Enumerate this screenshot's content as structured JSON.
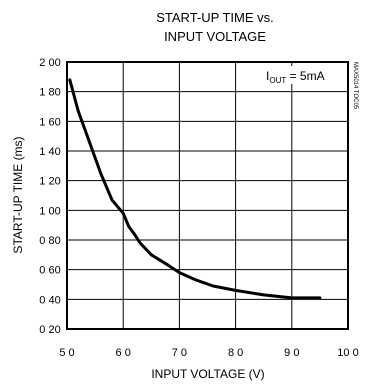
{
  "chart_data": {
    "type": "line",
    "title_line1": "START-UP TIME vs.",
    "title_line2": "INPUT VOLTAGE",
    "xlabel": "INPUT VOLTAGE (V)",
    "ylabel": "START-UP TIME (ms)",
    "xlim": [
      50,
      100
    ],
    "ylim": [
      20,
      200
    ],
    "x_ticks": [
      50,
      60,
      70,
      80,
      90,
      100
    ],
    "x_tick_labels": [
      "5 0",
      "6 0",
      "7 0",
      "8 0",
      "9 0",
      "10 0"
    ],
    "y_ticks": [
      20,
      40,
      60,
      80,
      100,
      120,
      140,
      160,
      180,
      200
    ],
    "y_tick_labels": [
      "0 20",
      "0 40",
      "0 60",
      "0 80",
      "1 00",
      "1 20",
      "1 40",
      "1 60",
      "1 80",
      "2 00"
    ],
    "grid": true,
    "annotation": {
      "prefix": "I",
      "subscript": "OUT",
      "suffix": " = 5mA"
    },
    "side_code": "MAX5014 TOC05",
    "series": [
      {
        "x": [
          50.5,
          52,
          54,
          56,
          58,
          60,
          61,
          62,
          63,
          65,
          68,
          70,
          73,
          76,
          80,
          85,
          90,
          95
        ],
        "y": [
          188,
          167,
          146,
          125,
          107,
          98,
          89,
          84,
          78,
          70,
          63,
          58,
          53,
          49,
          46,
          43,
          41,
          41
        ]
      }
    ]
  }
}
